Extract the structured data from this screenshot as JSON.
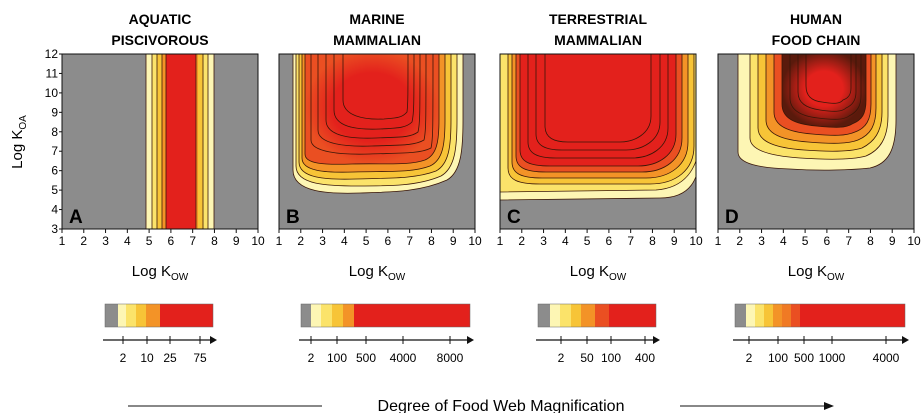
{
  "chart_data": {
    "type": "heatmap",
    "colors": {
      "background": "#8c8c8c",
      "levels": [
        "#fdf6b4",
        "#fbe36a",
        "#f7c437",
        "#f39327",
        "#ea4f22",
        "#e3211c"
      ],
      "contour": "#3a1608",
      "axis": "#111111"
    },
    "y_axis_label": {
      "main": "Log K",
      "sub": "OA"
    },
    "x_axis_label": {
      "main": "Log K",
      "sub": "OW"
    },
    "bottom_label": "Degree of Food Web Magnification",
    "y_ticks": [
      "3",
      "4",
      "5",
      "6",
      "7",
      "8",
      "9",
      "10",
      "11",
      "12"
    ],
    "panels": [
      {
        "letter": "A",
        "title": [
          "AQUATIC",
          "PISCIVOROUS"
        ],
        "x_ticks": [
          "1",
          "2",
          "3",
          "4",
          "5",
          "6",
          "7",
          "8",
          "9",
          "10"
        ],
        "xlim": [
          1,
          10
        ],
        "ylim": [
          3,
          12
        ],
        "legend_values": [
          "2",
          "10",
          "25",
          "75"
        ],
        "legend_bins": 6
      },
      {
        "letter": "B",
        "title": [
          "MARINE",
          "MAMMALIAN"
        ],
        "x_ticks": [
          "1",
          "2",
          "3",
          "4",
          "5",
          "6",
          "7",
          "8",
          "9",
          "10"
        ],
        "xlim": [
          1,
          10
        ],
        "ylim": [
          3,
          12
        ],
        "legend_values": [
          "2",
          "100",
          "500",
          "4000",
          "8000"
        ],
        "legend_bins": 6
      },
      {
        "letter": "C",
        "title": [
          "TERRESTRIAL",
          "MAMMALIAN"
        ],
        "x_ticks": [
          "1",
          "2",
          "3",
          "4",
          "5",
          "6",
          "7",
          "8",
          "9",
          "10"
        ],
        "xlim": [
          1,
          10
        ],
        "ylim": [
          3,
          12
        ],
        "legend_values": [
          "2",
          "50",
          "100",
          "400"
        ],
        "legend_bins": 7
      },
      {
        "letter": "D",
        "title": [
          "HUMAN",
          "FOOD CHAIN"
        ],
        "x_ticks": [
          "1",
          "2",
          "3",
          "4",
          "5",
          "6",
          "7",
          "8",
          "9",
          "10"
        ],
        "xlim": [
          1,
          10
        ],
        "ylim": [
          3,
          12
        ],
        "legend_values": [
          "2",
          "100",
          "500",
          "1000",
          "4000"
        ],
        "legend_bins": 8
      }
    ]
  }
}
